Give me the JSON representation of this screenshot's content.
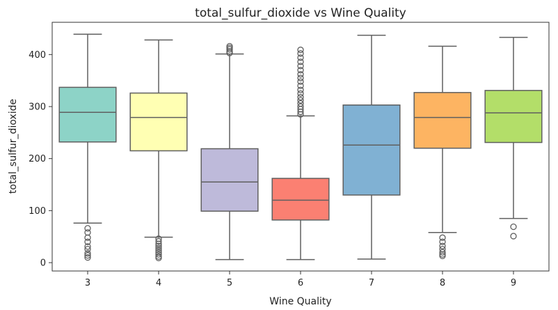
{
  "chart_data": {
    "type": "boxplot",
    "title": "total_sulfur_dioxide vs Wine Quality",
    "xlabel": "Wine Quality",
    "ylabel": "total_sulfur_dioxide",
    "ylim": [
      -16,
      462
    ],
    "yticks": [
      0,
      100,
      200,
      300,
      400
    ],
    "categories": [
      "3",
      "4",
      "5",
      "6",
      "7",
      "8",
      "9"
    ],
    "colors": [
      "#8dd3c7",
      "#ffffb3",
      "#bebada",
      "#fb8072",
      "#80b1d3",
      "#fdb462",
      "#b3de69"
    ],
    "boxes": [
      {
        "category": "3",
        "whisker_low": 76,
        "q1": 232,
        "median": 289,
        "q3": 337,
        "whisker_high": 439,
        "outliers": [
          66,
          58,
          48,
          40,
          31,
          26,
          18,
          14,
          10
        ]
      },
      {
        "category": "4",
        "whisker_low": 49,
        "q1": 215,
        "median": 279,
        "q3": 326,
        "whisker_high": 428,
        "outliers": [
          46,
          41,
          36,
          32,
          28,
          24,
          20,
          16,
          12,
          9
        ]
      },
      {
        "category": "5",
        "whisker_low": 6,
        "q1": 99,
        "median": 155,
        "q3": 219,
        "whisker_high": 401,
        "outliers": [
          403,
          406,
          410,
          413,
          416
        ]
      },
      {
        "category": "6",
        "whisker_low": 6,
        "q1": 82,
        "median": 120,
        "q3": 162,
        "whisker_high": 282,
        "outliers": [
          285,
          290,
          295,
          300,
          306,
          312,
          318,
          325,
          332,
          340,
          348,
          355,
          362,
          370,
          378,
          386,
          394,
          402,
          409
        ]
      },
      {
        "category": "7",
        "whisker_low": 7,
        "q1": 130,
        "median": 226,
        "q3": 303,
        "whisker_high": 437,
        "outliers": []
      },
      {
        "category": "8",
        "whisker_low": 58,
        "q1": 220,
        "median": 279,
        "q3": 327,
        "whisker_high": 416,
        "outliers": [
          48,
          40,
          32,
          26,
          20,
          16,
          13
        ]
      },
      {
        "category": "9",
        "whisker_low": 85,
        "q1": 231,
        "median": 288,
        "q3": 331,
        "whisker_high": 433,
        "outliers": [
          69,
          51
        ]
      }
    ],
    "grid": false,
    "legend": "none"
  }
}
